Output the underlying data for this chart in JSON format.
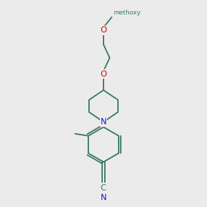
{
  "bg_color": "#ebebeb",
  "bond_color": "#3d7a6a",
  "n_color": "#1a1acc",
  "o_color": "#cc1111",
  "lw": 1.4,
  "fig_size": [
    3.0,
    3.0
  ],
  "dpi": 100,
  "xlim": [
    0,
    10
  ],
  "ylim": [
    0,
    10
  ]
}
